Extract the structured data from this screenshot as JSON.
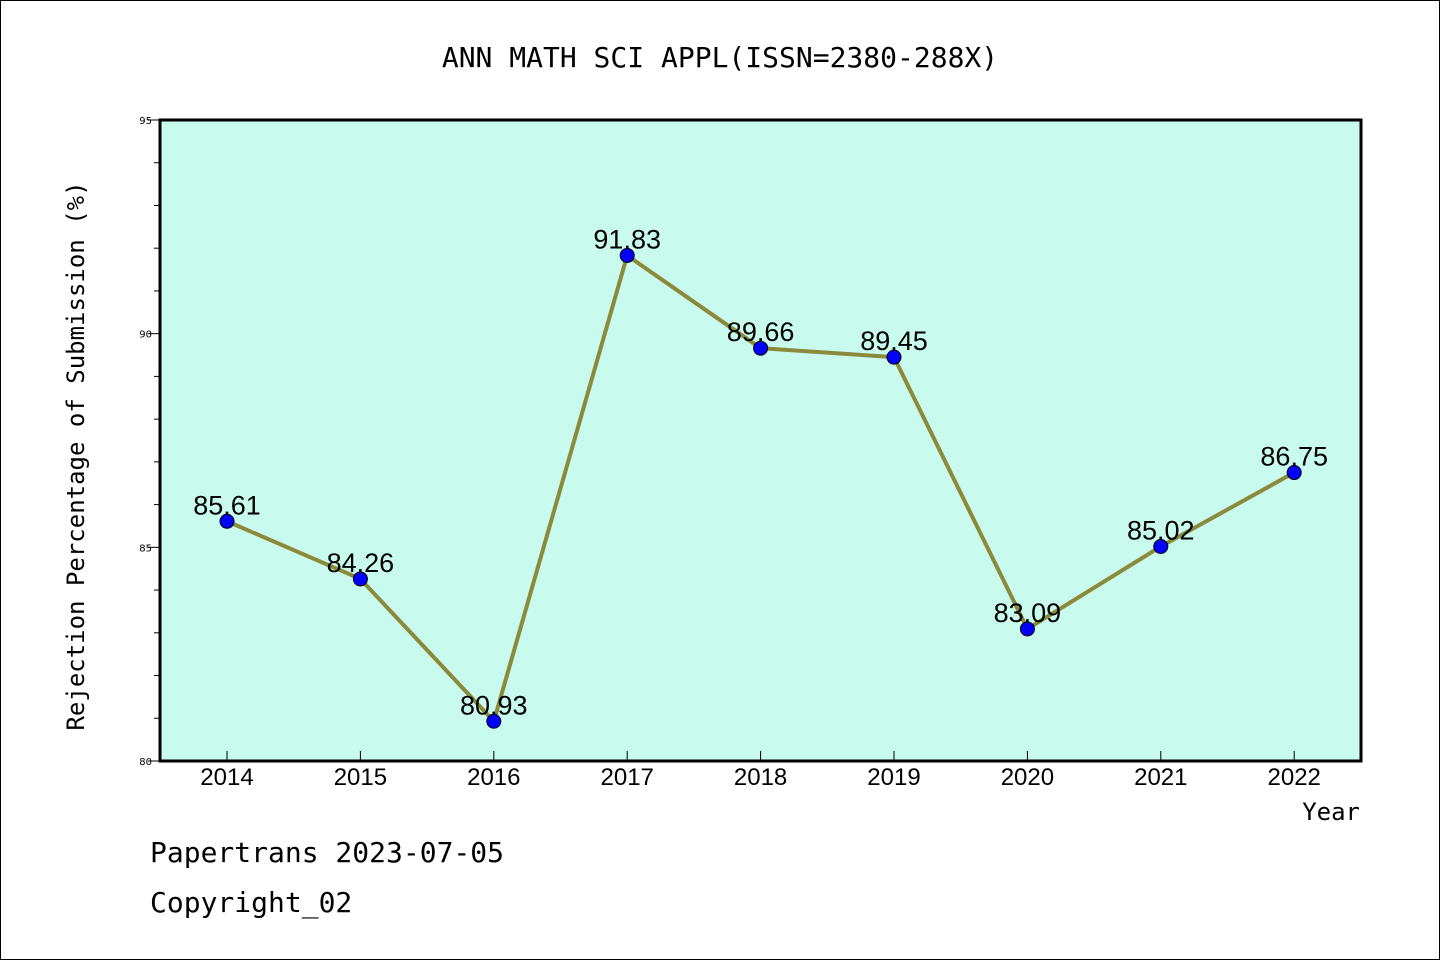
{
  "chart_data": {
    "type": "line",
    "title": "ANN MATH SCI APPL(ISSN=2380-288X)",
    "xlabel": "Year",
    "ylabel": "Rejection Percentage of Submission (%)",
    "categories": [
      "2014",
      "2015",
      "2016",
      "2017",
      "2018",
      "2019",
      "2020",
      "2021",
      "2022"
    ],
    "series": [
      {
        "values": [
          85.61,
          84.26,
          80.93,
          91.83,
          89.66,
          89.45,
          83.09,
          85.02,
          86.75
        ]
      }
    ],
    "data_labels": [
      "85.61",
      "84.26",
      "80.93",
      "91.83",
      "89.66",
      "89.45",
      "83.09",
      "85.02",
      "86.75"
    ],
    "ylim": [
      80,
      95
    ],
    "yticks": [
      "80",
      "85",
      "90",
      "95"
    ],
    "grid": false,
    "colors": {
      "plot_background": "#c8fbee",
      "line": "#8a8a3a",
      "marker": "#0000ff"
    }
  },
  "footer": {
    "line1": "Papertrans 2023-07-05",
    "line2": "Copyright_02"
  }
}
